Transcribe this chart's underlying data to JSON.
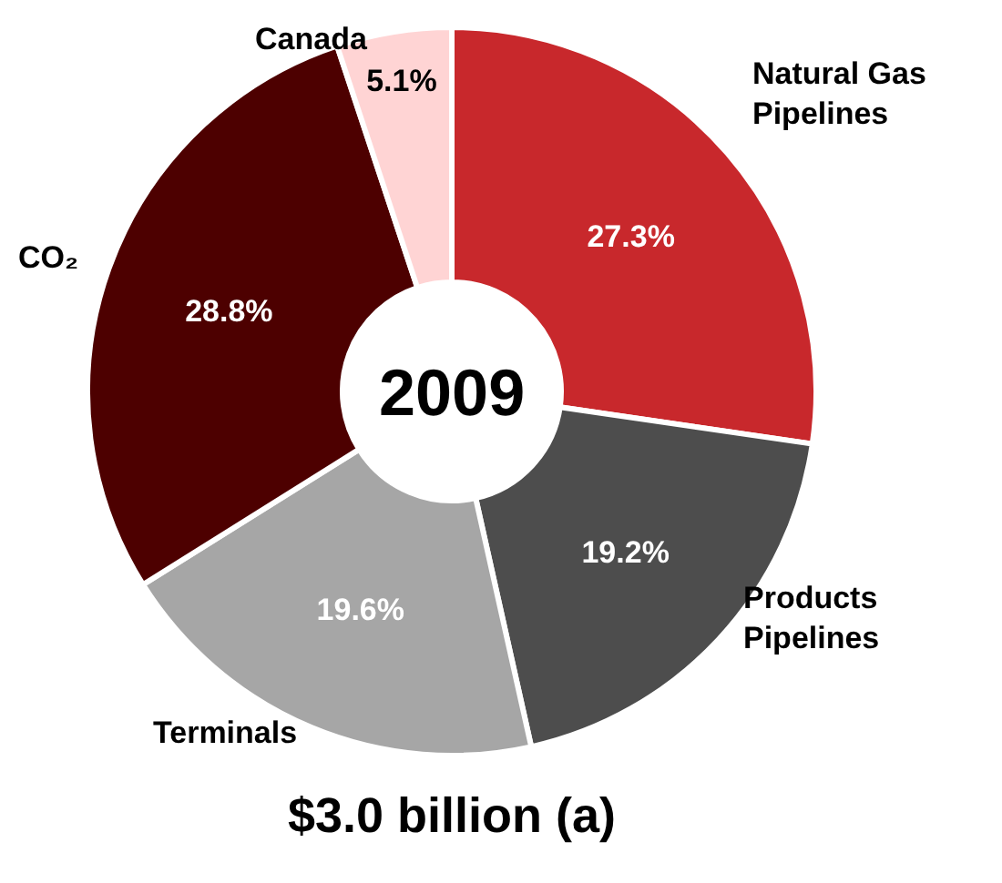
{
  "chart_data": {
    "type": "donut",
    "categories": [
      "Natural Gas Pipelines",
      "Products Pipelines",
      "Terminals",
      "CO₂",
      "Canada"
    ],
    "values": [
      27.3,
      19.2,
      19.6,
      28.8,
      5.1
    ],
    "value_labels": [
      "27.3%",
      "19.2%",
      "19.6%",
      "28.8%",
      "5.1%"
    ],
    "colors": [
      "#c8282c",
      "#4d4d4d",
      "#a6a6a6",
      "#4d0000",
      "#ffd4d4"
    ],
    "annotations": [
      "2009",
      "$3.0 billion (a)"
    ],
    "legend": false
  }
}
